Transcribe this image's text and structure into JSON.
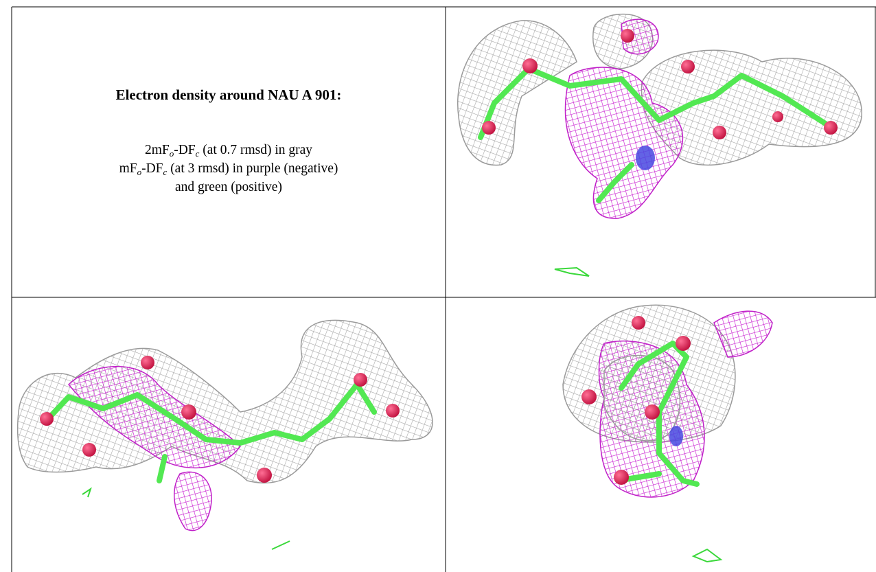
{
  "figure": {
    "title": "Electron density around NAU A 901:",
    "caption": [
      [
        {
          "text": "2mF"
        },
        {
          "text": "o",
          "sub": true
        },
        {
          "text": "-DF"
        },
        {
          "text": "c",
          "sub": true
        },
        {
          "text": " (at 0.7 rmsd) in gray"
        }
      ],
      [
        {
          "text": "mF"
        },
        {
          "text": "o",
          "sub": true
        },
        {
          "text": "-DF"
        },
        {
          "text": "c",
          "sub": true
        },
        {
          "text": " (at 3 rmsd) in purple (negative)"
        }
      ],
      [
        {
          "text": "and green (positive)"
        }
      ]
    ]
  }
}
